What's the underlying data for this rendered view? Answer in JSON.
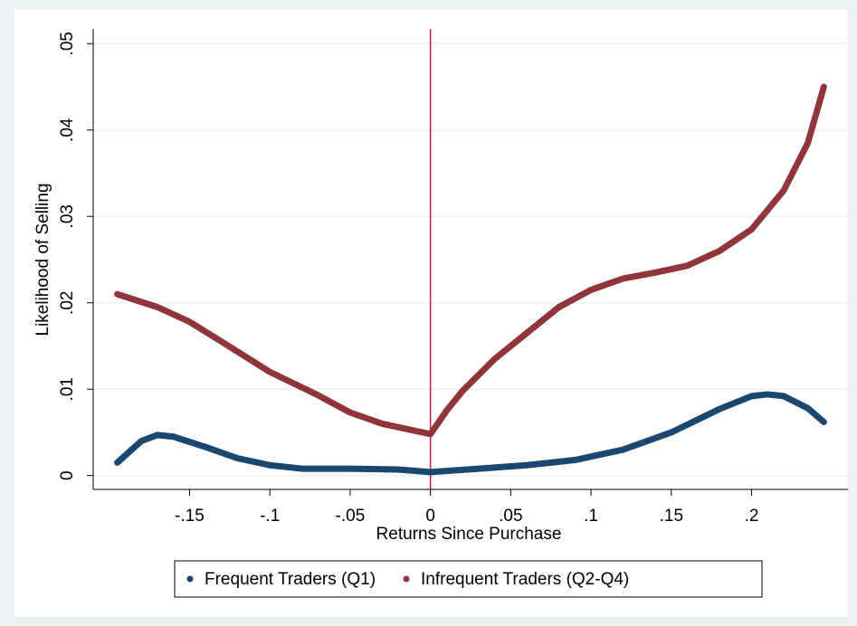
{
  "chart_data": {
    "type": "line",
    "x_label": "Returns Since Purchase",
    "y_label": "Likelihood of Selling",
    "xlim": [
      -0.21,
      0.26
    ],
    "ylim": [
      -0.0016,
      0.0517
    ],
    "xticks": [
      {
        "value": -0.15,
        "label": "-.15"
      },
      {
        "value": -0.1,
        "label": "-.1"
      },
      {
        "value": -0.05,
        "label": "-.05"
      },
      0,
      {
        "value": 0.05,
        "label": ".05"
      },
      {
        "value": 0.1,
        "label": ".1"
      },
      {
        "value": 0.15,
        "label": ".15"
      },
      {
        "value": 0.2,
        "label": ".2"
      }
    ],
    "yticks": [
      0,
      {
        "value": 0.01,
        "label": ".01"
      },
      {
        "value": 0.02,
        "label": ".02"
      },
      {
        "value": 0.03,
        "label": ".03"
      },
      {
        "value": 0.04,
        "label": ".04"
      },
      {
        "value": 0.05,
        "label": ".05"
      }
    ],
    "grid": true,
    "xline": 0,
    "xline_color": "#c0204a",
    "legend_position": "bottom",
    "series": [
      {
        "name": "Frequent Traders (Q1)",
        "color": "#1a476f",
        "x": [
          -0.195,
          -0.18,
          -0.17,
          -0.16,
          -0.14,
          -0.12,
          -0.1,
          -0.08,
          -0.05,
          -0.02,
          0,
          0.03,
          0.06,
          0.09,
          0.12,
          0.15,
          0.18,
          0.2,
          0.21,
          0.22,
          0.235,
          0.245
        ],
        "values": [
          0.0015,
          0.004,
          0.0047,
          0.0045,
          0.0033,
          0.002,
          0.0012,
          0.0008,
          0.0008,
          0.0007,
          0.0004,
          0.0008,
          0.0012,
          0.0018,
          0.003,
          0.005,
          0.0077,
          0.0092,
          0.0094,
          0.0092,
          0.0078,
          0.0062
        ]
      },
      {
        "name": "Infrequent Traders (Q2-Q4)",
        "color": "#90353b",
        "x": [
          -0.195,
          -0.17,
          -0.15,
          -0.13,
          -0.1,
          -0.07,
          -0.05,
          -0.03,
          -0.01,
          0,
          0.01,
          0.02,
          0.04,
          0.06,
          0.08,
          0.1,
          0.12,
          0.14,
          0.16,
          0.18,
          0.2,
          0.22,
          0.235,
          0.245
        ],
        "values": [
          0.021,
          0.0195,
          0.0178,
          0.0155,
          0.012,
          0.0093,
          0.0073,
          0.006,
          0.0052,
          0.0048,
          0.0075,
          0.0098,
          0.0135,
          0.0165,
          0.0195,
          0.0215,
          0.0228,
          0.0235,
          0.0243,
          0.026,
          0.0285,
          0.033,
          0.0385,
          0.045
        ]
      }
    ]
  }
}
